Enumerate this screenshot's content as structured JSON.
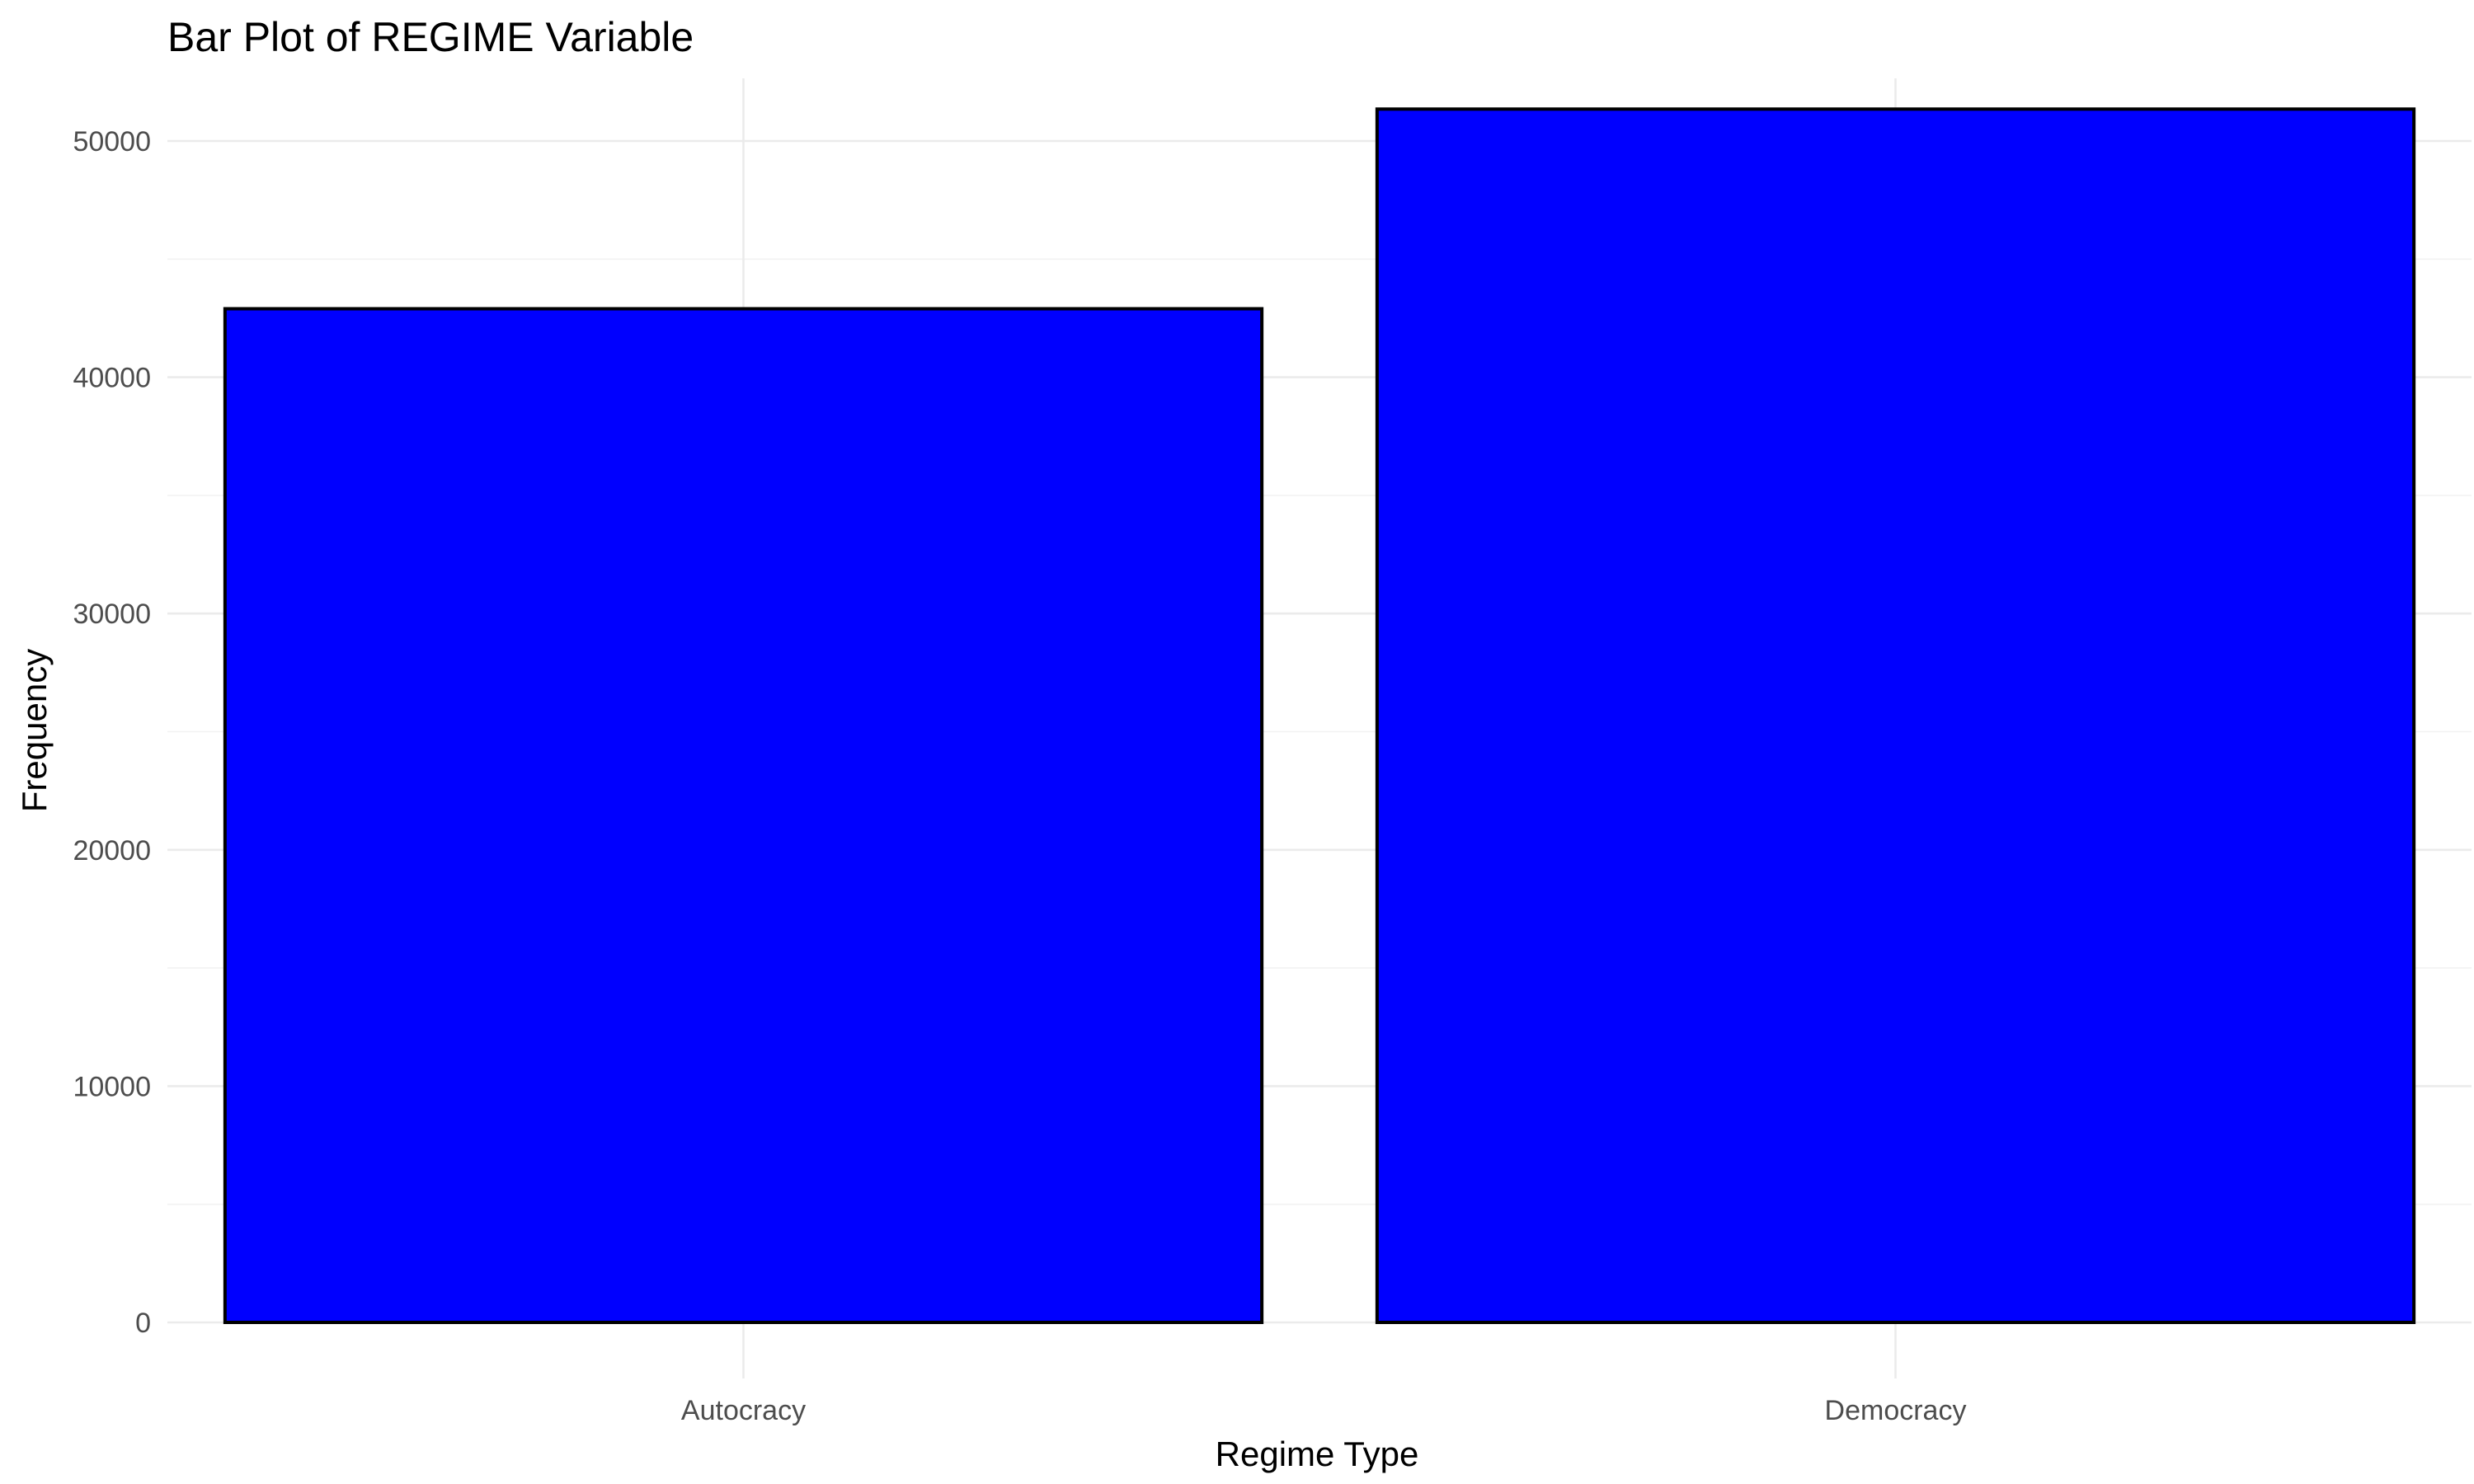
{
  "chart_data": {
    "type": "bar",
    "title": "Bar Plot of REGIME Variable",
    "xlabel": "Regime Type",
    "ylabel": "Frequency",
    "categories": [
      "Autocracy",
      "Democracy"
    ],
    "values": [
      42900,
      51350
    ],
    "ylim": [
      0,
      53500
    ],
    "yticks": [
      0,
      10000,
      20000,
      30000,
      40000,
      50000
    ],
    "ytick_labels": [
      "0",
      "10000",
      "20000",
      "30000",
      "40000",
      "50000"
    ],
    "grid": true,
    "legend": "none",
    "colors": {
      "bar_fill": "#0000FF",
      "bar_outline": "#000000",
      "grid": "#EBEBEB",
      "tick_text": "#4D4D4D"
    }
  }
}
